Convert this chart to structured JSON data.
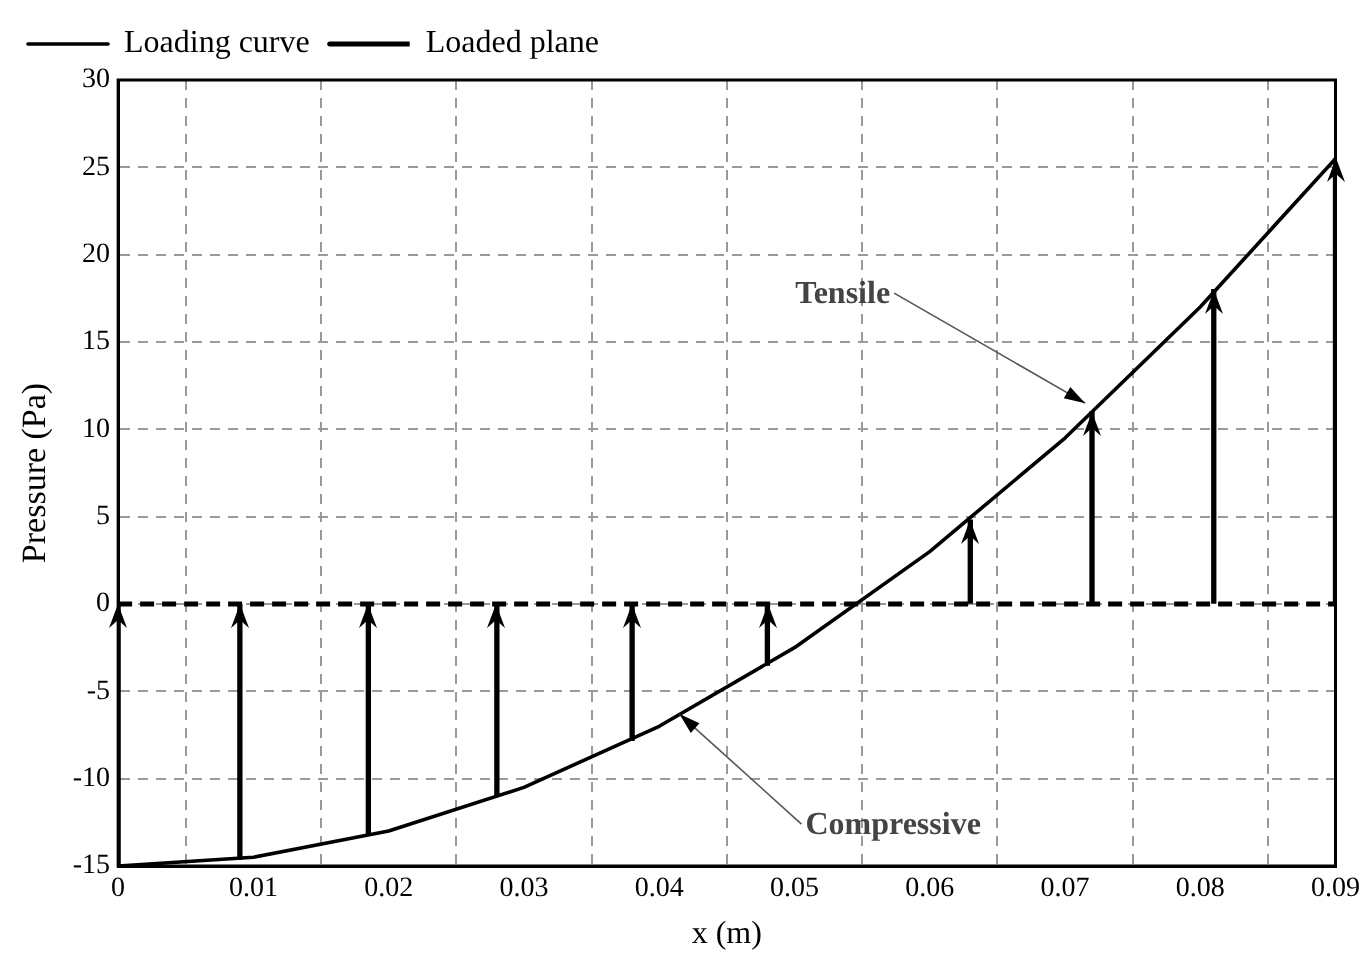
{
  "chart_data": {
    "type": "line",
    "xlabel": "x (m)",
    "ylabel": "Pressure (Pa)",
    "xlim": [
      0,
      0.09
    ],
    "xticks": [
      0,
      0.01,
      0.02,
      0.03,
      0.04,
      0.05,
      0.06,
      0.07,
      0.08,
      0.09
    ],
    "ylim": [
      -15,
      30
    ],
    "yticks": [
      -15,
      -10,
      -5,
      0,
      5,
      10,
      15,
      20,
      25,
      30
    ],
    "grid": true,
    "legend": "top left",
    "marker": "none",
    "series": [
      {
        "name": "Loading curve",
        "color": "#000000",
        "line_style": "solid",
        "x": [
          0,
          0.01,
          0.02,
          0.03,
          0.04,
          0.05,
          0.06,
          0.07,
          0.08,
          0.09
        ],
        "values": [
          -15,
          -14.5,
          -13,
          -10.5,
          -7,
          -2.5,
          3,
          9.5,
          17,
          25.5
        ]
      },
      {
        "name": "Loaded plane",
        "color": "#000000",
        "line_style": "dashed",
        "x": [
          0,
          0.09
        ],
        "values": [
          0,
          0
        ]
      },
      {
        "type": "bar",
        "color": "#000000",
        "x": [
          0,
          0.009,
          0.0185,
          0.028,
          0.038,
          0.048,
          0.063,
          0.072,
          0.081,
          0.09
        ],
        "base": [
          -15,
          -14.6,
          -13.2,
          -11,
          -7.8,
          -3.5,
          0,
          0,
          0,
          0
        ],
        "values": [
          15,
          14.6,
          13.2,
          11,
          7.8,
          3.5,
          4.8,
          11,
          18,
          25.5
        ]
      }
    ],
    "annotations": [
      {
        "text": "Tensile",
        "x": 0.0715,
        "y": 11.5
      },
      {
        "text": "Compressive",
        "x": 0.0415,
        "y": -6.3
      }
    ]
  }
}
